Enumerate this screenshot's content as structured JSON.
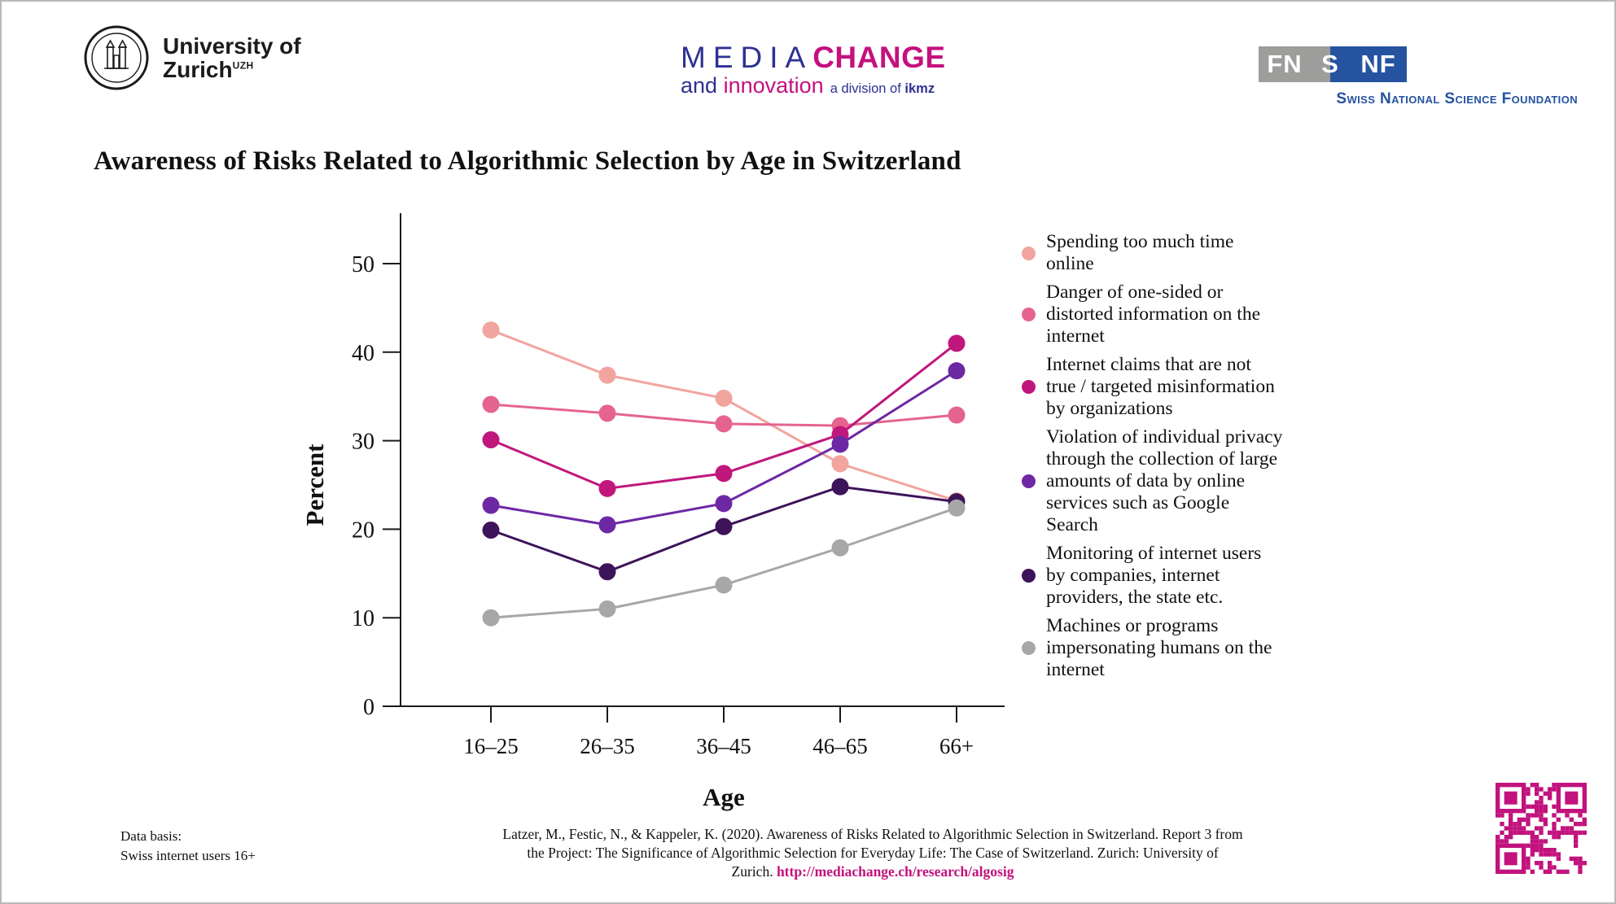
{
  "page": {
    "title": "Awareness of Risks Related to Algorithmic Selection by Age in Switzerland"
  },
  "header": {
    "uzh": {
      "line1": "University of",
      "line2": "Zurich",
      "sup": "UZH"
    },
    "mediachange": {
      "word1": "MEDIA",
      "word2": "CHANGE",
      "and": "and",
      "innovation": "innovation",
      "division": "a division of",
      "ikmz": "ikmz",
      "blue": "#2e3192",
      "magenta": "#c4117e"
    },
    "snf": {
      "left": "FN",
      "mid": "S",
      "right": "NF",
      "full_name": "Swiss National Science Foundation",
      "gray": "#9d9d9c",
      "blue": "#2553a0"
    }
  },
  "chart_data": {
    "type": "line",
    "title": "Awareness of Risks Related to Algorithmic Selection by Age in Switzerland",
    "xlabel": "Age",
    "ylabel": "Percent",
    "categories": [
      "16–25",
      "26–35",
      "36–45",
      "46–65",
      "66+"
    ],
    "yticks": [
      0,
      10,
      20,
      30,
      40,
      50
    ],
    "ylim": [
      0,
      55
    ],
    "grid": false,
    "legend_position": "right",
    "series": [
      {
        "name": "Spending too much time online",
        "color": "#f2a49e",
        "values": [
          42.5,
          37.4,
          34.8,
          27.4,
          23.2
        ]
      },
      {
        "name": "Danger of one-sided or distorted information on the internet",
        "color": "#e5648e",
        "values": [
          34.1,
          33.1,
          31.9,
          31.7,
          32.9
        ]
      },
      {
        "name": "Internet claims that are not true / targeted misinformation by organizations",
        "color": "#c0177c",
        "values": [
          30.1,
          24.6,
          26.3,
          30.7,
          41.0
        ]
      },
      {
        "name": "Violation of individual privacy through the collection of large amounts of data by online services such as Google Search",
        "color": "#6d28a4",
        "values": [
          22.7,
          20.5,
          22.9,
          29.6,
          37.9
        ]
      },
      {
        "name": "Monitoring of internet users by companies, internet providers, the state etc.",
        "color": "#3d1359",
        "values": [
          19.9,
          15.2,
          20.3,
          24.8,
          23.1
        ]
      },
      {
        "name": "Machines or programs impersonating humans on the internet",
        "color": "#a7a7a7",
        "values": [
          10.0,
          11.0,
          13.7,
          17.9,
          22.4
        ]
      }
    ]
  },
  "footer": {
    "data_basis_line1": "Data basis:",
    "data_basis_line2": "Swiss internet users 16+",
    "citation_line1": "Latzer, M., Festic, N., & Kappeler, K. (2020). Awareness of Risks Related to Algorithmic Selection in Switzerland. Report 3 from",
    "citation_line2": "the Project: The Significance of Algorithmic Selection for Everyday Life: The Case of Switzerland. Zurich: University of",
    "citation_line3_prefix": "Zurich. ",
    "citation_url": "http://mediachange.ch/research/algosig",
    "url_color": "#c2127d",
    "qr_color": "#c2127d"
  }
}
